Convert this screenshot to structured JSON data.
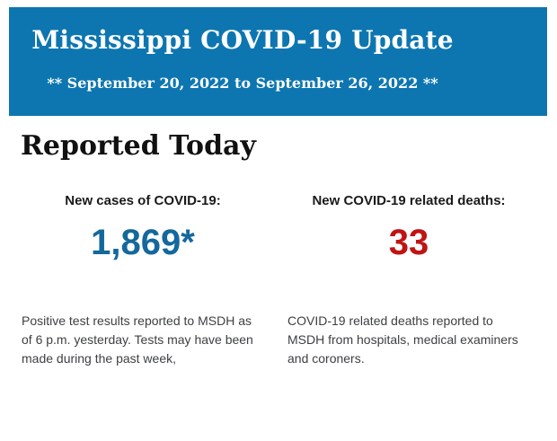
{
  "banner": {
    "title": "Mississippi COVID-19 Update",
    "subtitle": "** September 20, 2022 to September 26, 2022 **",
    "background_color": "#0d76b1",
    "text_color": "#ffffff"
  },
  "main": {
    "heading": "Reported Today",
    "stats": [
      {
        "label": "New cases of COVID-19:",
        "value": "1,869*",
        "value_color": "#14689c",
        "description": "Positive test results reported to MSDH as of 6 p.m. yesterday. Tests may have been made during the past week,"
      },
      {
        "label": "New COVID-19 related deaths:",
        "value": "33",
        "value_color": "#c01414",
        "description": "COVID-19 related deaths reported to MSDH from hospitals, medical examiners and coroners."
      }
    ]
  }
}
